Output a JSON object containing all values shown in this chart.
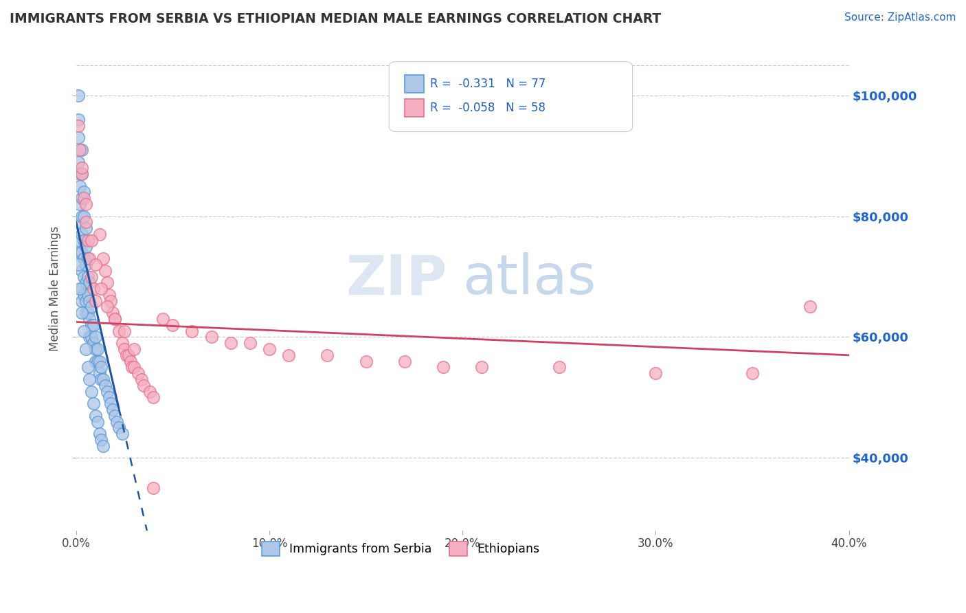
{
  "title": "IMMIGRANTS FROM SERBIA VS ETHIOPIAN MEDIAN MALE EARNINGS CORRELATION CHART",
  "source": "Source: ZipAtlas.com",
  "ylabel": "Median Male Earnings",
  "x_min": 0.0,
  "x_max": 0.4,
  "y_min": 28000,
  "y_max": 108000,
  "yticks": [
    40000,
    60000,
    80000,
    100000
  ],
  "ytick_labels": [
    "$40,000",
    "$60,000",
    "$80,000",
    "$100,000"
  ],
  "xticks": [
    0.0,
    0.1,
    0.2,
    0.3,
    0.4
  ],
  "xtick_labels": [
    "0.0%",
    "10.0%",
    "20.0%",
    "30.0%",
    "40.0%"
  ],
  "serbia_color": "#aec6e8",
  "ethiopia_color": "#f4afc0",
  "serbia_edge": "#5b9bd5",
  "ethiopia_edge": "#e87090",
  "serbia_line_color": "#2255a0",
  "ethiopia_line_color": "#d04060",
  "serbia_r": -0.331,
  "serbia_n": 77,
  "ethiopia_r": -0.058,
  "ethiopia_n": 58,
  "legend_label_serbia": "Immigrants from Serbia",
  "legend_label_ethiopia": "Ethiopians",
  "watermark_zip": "ZIP",
  "watermark_atlas": "atlas",
  "serbia_line_x0": 0.0,
  "serbia_line_y0": 79000,
  "serbia_line_x1": 0.028,
  "serbia_line_y1": 40000,
  "serbia_line_solid_end": 0.022,
  "serbia_line_dash_end": 0.19,
  "ethiopia_line_x0": 0.0,
  "ethiopia_line_y0": 62500,
  "ethiopia_line_x1": 0.4,
  "ethiopia_line_y1": 57000,
  "serbia_x": [
    0.001,
    0.001,
    0.001,
    0.001,
    0.002,
    0.002,
    0.002,
    0.002,
    0.002,
    0.002,
    0.003,
    0.003,
    0.003,
    0.003,
    0.003,
    0.003,
    0.003,
    0.003,
    0.003,
    0.004,
    0.004,
    0.004,
    0.004,
    0.004,
    0.004,
    0.005,
    0.005,
    0.005,
    0.005,
    0.005,
    0.005,
    0.006,
    0.006,
    0.006,
    0.006,
    0.007,
    0.007,
    0.007,
    0.007,
    0.008,
    0.008,
    0.008,
    0.009,
    0.009,
    0.01,
    0.01,
    0.01,
    0.011,
    0.011,
    0.012,
    0.012,
    0.013,
    0.013,
    0.014,
    0.015,
    0.016,
    0.017,
    0.018,
    0.019,
    0.02,
    0.021,
    0.022,
    0.024,
    0.001,
    0.002,
    0.003,
    0.004,
    0.005,
    0.006,
    0.007,
    0.008,
    0.009,
    0.01,
    0.011,
    0.012,
    0.013,
    0.014
  ],
  "serbia_y": [
    100000,
    96000,
    93000,
    89000,
    87000,
    85000,
    82000,
    79000,
    76000,
    74000,
    91000,
    87000,
    83000,
    80000,
    77000,
    74000,
    71000,
    68000,
    66000,
    84000,
    80000,
    76000,
    73000,
    70000,
    67000,
    78000,
    75000,
    72000,
    69000,
    66000,
    64000,
    73000,
    70000,
    67000,
    64000,
    69000,
    66000,
    63000,
    60000,
    65000,
    62000,
    60000,
    62000,
    59000,
    60000,
    58000,
    56000,
    58000,
    56000,
    56000,
    54000,
    55000,
    53000,
    53000,
    52000,
    51000,
    50000,
    49000,
    48000,
    47000,
    46000,
    45000,
    44000,
    72000,
    68000,
    64000,
    61000,
    58000,
    55000,
    53000,
    51000,
    49000,
    47000,
    46000,
    44000,
    43000,
    42000
  ],
  "ethiopia_x": [
    0.001,
    0.002,
    0.003,
    0.004,
    0.005,
    0.006,
    0.007,
    0.008,
    0.009,
    0.01,
    0.012,
    0.014,
    0.015,
    0.016,
    0.017,
    0.018,
    0.019,
    0.02,
    0.022,
    0.024,
    0.025,
    0.026,
    0.027,
    0.028,
    0.029,
    0.03,
    0.032,
    0.034,
    0.035,
    0.038,
    0.04,
    0.045,
    0.05,
    0.06,
    0.07,
    0.08,
    0.09,
    0.1,
    0.11,
    0.13,
    0.15,
    0.17,
    0.19,
    0.21,
    0.25,
    0.3,
    0.35,
    0.38,
    0.003,
    0.005,
    0.008,
    0.01,
    0.013,
    0.016,
    0.02,
    0.025,
    0.03,
    0.04
  ],
  "ethiopia_y": [
    95000,
    91000,
    87000,
    83000,
    79000,
    76000,
    73000,
    70000,
    68000,
    66000,
    77000,
    73000,
    71000,
    69000,
    67000,
    66000,
    64000,
    63000,
    61000,
    59000,
    58000,
    57000,
    57000,
    56000,
    55000,
    55000,
    54000,
    53000,
    52000,
    51000,
    50000,
    63000,
    62000,
    61000,
    60000,
    59000,
    59000,
    58000,
    57000,
    57000,
    56000,
    56000,
    55000,
    55000,
    55000,
    54000,
    54000,
    65000,
    88000,
    82000,
    76000,
    72000,
    68000,
    65000,
    63000,
    61000,
    58000,
    35000
  ]
}
